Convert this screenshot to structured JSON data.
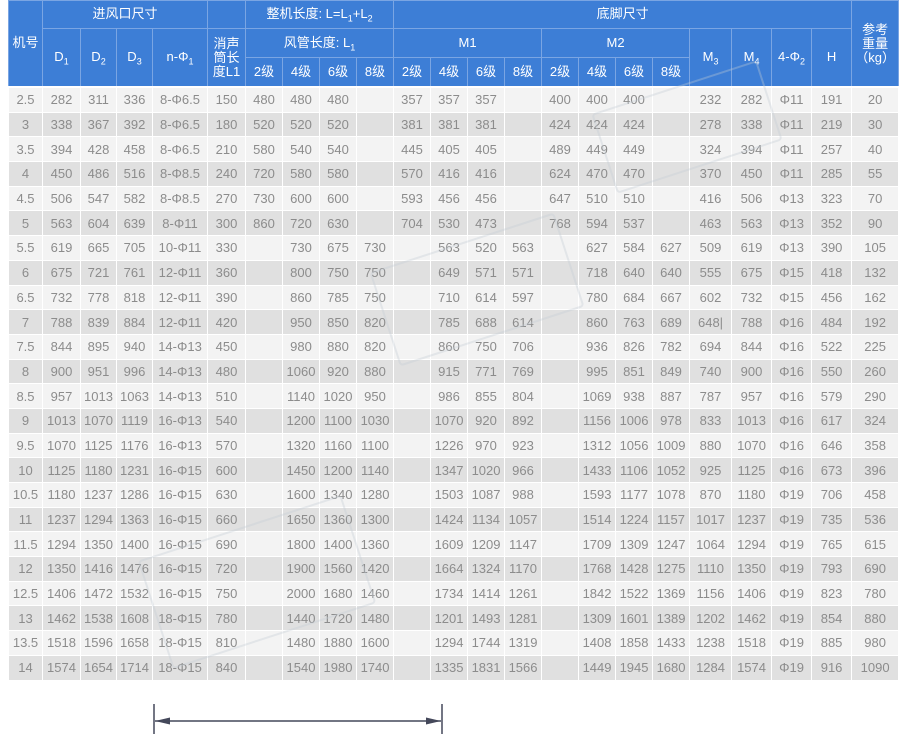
{
  "colors": {
    "header_bg": "#3d7ed6",
    "header_border": "#7aa5e3",
    "header_text": "#ffffff",
    "row_light": "#f3f3f3",
    "row_dark": "#e0e0e0",
    "cell_text": "#8c8c8c",
    "dimension_line": "#44485a"
  },
  "header": {
    "machine_no": "机号",
    "inlet_group": "进风口尺寸",
    "d1": {
      "base": "D",
      "sub": "1"
    },
    "d2": {
      "base": "D",
      "sub": "2"
    },
    "d3": {
      "base": "D",
      "sub": "3"
    },
    "n_phi1": {
      "base": "n-Φ",
      "sub": "1"
    },
    "silencer_lines": {
      "l1": "消声",
      "l2": "筒长",
      "l3": "度L1"
    },
    "overall_length": {
      "t1": "整机长度: L=L",
      "s1": "1",
      "t2": "+L",
      "s2": "2"
    },
    "duct_length": {
      "t1": "风管长度: L",
      "s1": "1"
    },
    "grades": [
      "2级",
      "4级",
      "6级",
      "8级"
    ],
    "footing_group": "底脚尺寸",
    "m1": "M1",
    "m2": "M2",
    "m3": {
      "base": "M",
      "sub": "3"
    },
    "m4": {
      "base": "M",
      "sub": "4"
    },
    "phi2": {
      "base": "4-Φ",
      "sub": "2"
    },
    "h": "H",
    "weight_lines": {
      "l1": "参考",
      "l2": "重量",
      "l3": "（kg）"
    }
  },
  "table": {
    "rows": [
      [
        "2.5",
        "282",
        "311",
        "336",
        "8-Φ6.5",
        "150",
        "480",
        "480",
        "480",
        "",
        "357",
        "357",
        "357",
        "",
        "400",
        "400",
        "400",
        "",
        "232",
        "282",
        "Φ11",
        "191",
        "20"
      ],
      [
        "3",
        "338",
        "367",
        "392",
        "8-Φ6.5",
        "180",
        "520",
        "520",
        "520",
        "",
        "381",
        "381",
        "381",
        "",
        "424",
        "424",
        "424",
        "",
        "278",
        "338",
        "Φ11",
        "219",
        "30"
      ],
      [
        "3.5",
        "394",
        "428",
        "458",
        "8-Φ6.5",
        "210",
        "580",
        "540",
        "540",
        "",
        "445",
        "405",
        "405",
        "",
        "489",
        "449",
        "449",
        "",
        "324",
        "394",
        "Φ11",
        "257",
        "40"
      ],
      [
        "4",
        "450",
        "486",
        "516",
        "8-Φ8.5",
        "240",
        "720",
        "580",
        "580",
        "",
        "570",
        "416",
        "416",
        "",
        "624",
        "470",
        "470",
        "",
        "370",
        "450",
        "Φ11",
        "285",
        "55"
      ],
      [
        "4.5",
        "506",
        "547",
        "582",
        "8-Φ8.5",
        "270",
        "730",
        "600",
        "600",
        "",
        "593",
        "456",
        "456",
        "",
        "647",
        "510",
        "510",
        "",
        "416",
        "506",
        "Φ13",
        "323",
        "70"
      ],
      [
        "5",
        "563",
        "604",
        "639",
        "8-Φ11",
        "300",
        "860",
        "720",
        "630",
        "",
        "704",
        "530",
        "473",
        "",
        "768",
        "594",
        "537",
        "",
        "463",
        "563",
        "Φ13",
        "352",
        "90"
      ],
      [
        "5.5",
        "619",
        "665",
        "705",
        "10-Φ11",
        "330",
        "",
        "730",
        "675",
        "730",
        "",
        "563",
        "520",
        "563",
        "",
        "627",
        "584",
        "627",
        "509",
        "619",
        "Φ13",
        "390",
        "105"
      ],
      [
        "6",
        "675",
        "721",
        "761",
        "12-Φ11",
        "360",
        "",
        "800",
        "750",
        "750",
        "",
        "649",
        "571",
        "571",
        "",
        "718",
        "640",
        "640",
        "555",
        "675",
        "Φ15",
        "418",
        "132"
      ],
      [
        "6.5",
        "732",
        "778",
        "818",
        "12-Φ11",
        "390",
        "",
        "860",
        "785",
        "750",
        "",
        "710",
        "614",
        "597",
        "",
        "780",
        "684",
        "667",
        "602",
        "732",
        "Φ15",
        "456",
        "162"
      ],
      [
        "7",
        "788",
        "839",
        "884",
        "12-Φ11",
        "420",
        "",
        "950",
        "850",
        "820",
        "",
        "785",
        "688",
        "614",
        "",
        "860",
        "763",
        "689",
        "648|",
        "788",
        "Φ16",
        "484",
        "192"
      ],
      [
        "7.5",
        "844",
        "895",
        "940",
        "14-Φ13",
        "450",
        "",
        "980",
        "880",
        "820",
        "",
        "860",
        "750",
        "706",
        "",
        "936",
        "826",
        "782",
        "694",
        "844",
        "Φ16",
        "522",
        "225"
      ],
      [
        "8",
        "900",
        "951",
        "996",
        "14-Φ13",
        "480",
        "",
        "1060",
        "920",
        "880",
        "",
        "915",
        "771",
        "769",
        "",
        "995",
        "851",
        "849",
        "740",
        "900",
        "Φ16",
        "550",
        "260"
      ],
      [
        "8.5",
        "957",
        "1013",
        "1063",
        "14-Φ13",
        "510",
        "",
        "1140",
        "1020",
        "950",
        "",
        "986",
        "855",
        "804",
        "",
        "1069",
        "938",
        "887",
        "787",
        "957",
        "Φ16",
        "579",
        "290"
      ],
      [
        "9",
        "1013",
        "1070",
        "1119",
        "16-Φ13",
        "540",
        "",
        "1200",
        "1100",
        "1030",
        "",
        "1070",
        "920",
        "892",
        "",
        "1156",
        "1006",
        "978",
        "833",
        "1013",
        "Φ16",
        "617",
        "324"
      ],
      [
        "9.5",
        "1070",
        "1125",
        "1176",
        "16-Φ13",
        "570",
        "",
        "1320",
        "1160",
        "1100",
        "",
        "1226",
        "970",
        "923",
        "",
        "1312",
        "1056",
        "1009",
        "880",
        "1070",
        "Φ16",
        "646",
        "358"
      ],
      [
        "10",
        "1125",
        "1180",
        "1231",
        "16-Φ15",
        "600",
        "",
        "1450",
        "1200",
        "1140",
        "",
        "1347",
        "1020",
        "966",
        "",
        "1433",
        "1106",
        "1052",
        "925",
        "1125",
        "Φ16",
        "673",
        "396"
      ],
      [
        "10.5",
        "1180",
        "1237",
        "1286",
        "16-Φ15",
        "630",
        "",
        "1600",
        "1340",
        "1280",
        "",
        "1503",
        "1087",
        "988",
        "",
        "1593",
        "1177",
        "1078",
        "870",
        "1180",
        "Φ19",
        "706",
        "458"
      ],
      [
        "11",
        "1237",
        "1294",
        "1363",
        "16-Φ15",
        "660",
        "",
        "1650",
        "1360",
        "1300",
        "",
        "1424",
        "1134",
        "1057",
        "",
        "1514",
        "1224",
        "1157",
        "1017",
        "1237",
        "Φ19",
        "735",
        "536"
      ],
      [
        "11.5",
        "1294",
        "1350",
        "1400",
        "16-Φ15",
        "690",
        "",
        "1800",
        "1400",
        "1360",
        "",
        "1609",
        "1209",
        "1147",
        "",
        "1709",
        "1309",
        "1247",
        "1064",
        "1294",
        "Φ19",
        "765",
        "615"
      ],
      [
        "12",
        "1350",
        "1416",
        "1476",
        "16-Φ15",
        "720",
        "",
        "1900",
        "1560",
        "1420",
        "",
        "1664",
        "1324",
        "1170",
        "",
        "1768",
        "1428",
        "1275",
        "1110",
        "1350",
        "Φ19",
        "793",
        "690"
      ],
      [
        "12.5",
        "1406",
        "1472",
        "1532",
        "16-Φ15",
        "750",
        "",
        "2000",
        "1680",
        "1460",
        "",
        "1734",
        "1414",
        "1261",
        "",
        "1842",
        "1522",
        "1369",
        "1156",
        "1406",
        "Φ19",
        "823",
        "780"
      ],
      [
        "13",
        "1462",
        "1538",
        "1608",
        "18-Φ15",
        "780",
        "",
        "1440",
        "1720",
        "1480",
        "",
        "1201",
        "1493",
        "1281",
        "",
        "1309",
        "1601",
        "1389",
        "1202",
        "1462",
        "Φ19",
        "854",
        "880"
      ],
      [
        "13.5",
        "1518",
        "1596",
        "1658",
        "18-Φ15",
        "810",
        "",
        "1480",
        "1880",
        "1600",
        "",
        "1294",
        "1744",
        "1319",
        "",
        "1408",
        "1858",
        "1433",
        "1238",
        "1518",
        "Φ19",
        "885",
        "980"
      ],
      [
        "14",
        "1574",
        "1654",
        "1714",
        "18-Φ15",
        "840",
        "",
        "1540",
        "1980",
        "1740",
        "",
        "1335",
        "1831",
        "1566",
        "",
        "1449",
        "1945",
        "1680",
        "1284",
        "1574",
        "Φ19",
        "916",
        "1090"
      ]
    ]
  }
}
